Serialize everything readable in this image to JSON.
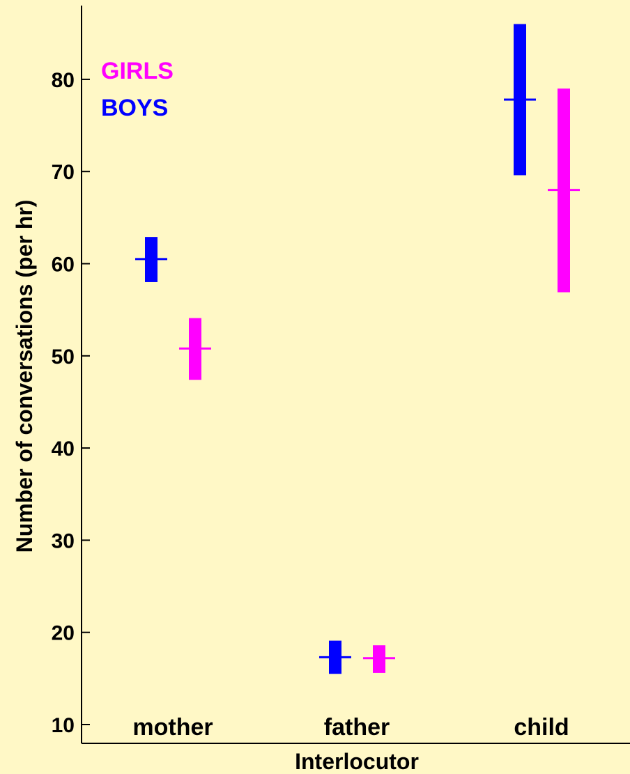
{
  "chart_data": {
    "type": "errorbar",
    "xlabel": "Interlocutor",
    "ylabel": "Number of conversations (per hr)",
    "categories": [
      "mother",
      "father",
      "child"
    ],
    "ylim": [
      10,
      87
    ],
    "yticks": [
      10,
      20,
      30,
      40,
      50,
      60,
      70,
      80
    ],
    "grid": false,
    "legend_position": "top-left",
    "series": [
      {
        "name": "BOYS",
        "color": "#0000ff",
        "points": [
          {
            "category": "mother",
            "mean": 60.5,
            "low": 58.0,
            "high": 62.9
          },
          {
            "category": "father",
            "mean": 17.3,
            "low": 15.5,
            "high": 19.1
          },
          {
            "category": "child",
            "mean": 77.8,
            "low": 69.6,
            "high": 86.0
          }
        ]
      },
      {
        "name": "GIRLS",
        "color": "#ff00ff",
        "points": [
          {
            "category": "mother",
            "mean": 50.8,
            "low": 47.4,
            "high": 54.1
          },
          {
            "category": "father",
            "mean": 17.2,
            "low": 15.6,
            "high": 18.6
          },
          {
            "category": "child",
            "mean": 68.0,
            "low": 56.9,
            "high": 79.0
          }
        ]
      }
    ],
    "legend": [
      {
        "label": "GIRLS",
        "color": "#ff00ff"
      },
      {
        "label": "BOYS",
        "color": "#0000ff"
      }
    ]
  }
}
